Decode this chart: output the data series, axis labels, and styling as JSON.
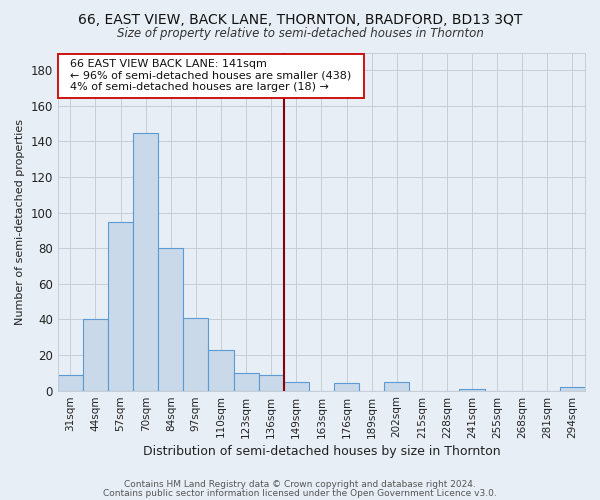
{
  "title": "66, EAST VIEW, BACK LANE, THORNTON, BRADFORD, BD13 3QT",
  "subtitle": "Size of property relative to semi-detached houses in Thornton",
  "xlabel": "Distribution of semi-detached houses by size in Thornton",
  "ylabel": "Number of semi-detached properties",
  "bar_labels": [
    "31sqm",
    "44sqm",
    "57sqm",
    "70sqm",
    "84sqm",
    "97sqm",
    "110sqm",
    "123sqm",
    "136sqm",
    "149sqm",
    "163sqm",
    "176sqm",
    "189sqm",
    "202sqm",
    "215sqm",
    "228sqm",
    "241sqm",
    "255sqm",
    "268sqm",
    "281sqm",
    "294sqm"
  ],
  "bar_values": [
    9,
    40,
    95,
    145,
    80,
    41,
    23,
    10,
    9,
    5,
    0,
    4,
    0,
    5,
    0,
    0,
    1,
    0,
    0,
    0,
    2
  ],
  "bar_color": "#c9d9ea",
  "bar_edge_color": "#5b9bd5",
  "annotation_title": "66 EAST VIEW BACK LANE: 141sqm",
  "annotation_line1": "← 96% of semi-detached houses are smaller (438)",
  "annotation_line2": "4% of semi-detached houses are larger (18) →",
  "vline_index": 8.5,
  "vline_color": "#8b0000",
  "ylim": [
    0,
    190
  ],
  "yticks": [
    0,
    20,
    40,
    60,
    80,
    100,
    120,
    140,
    160,
    180
  ],
  "footer1": "Contains HM Land Registry data © Crown copyright and database right 2024.",
  "footer2": "Contains public sector information licensed under the Open Government Licence v3.0.",
  "background_color": "#e8eef6",
  "plot_background": "#e8eef6",
  "annotation_box_color": "white",
  "annotation_box_edge": "#cc0000",
  "grid_color": "#c5cdd8"
}
